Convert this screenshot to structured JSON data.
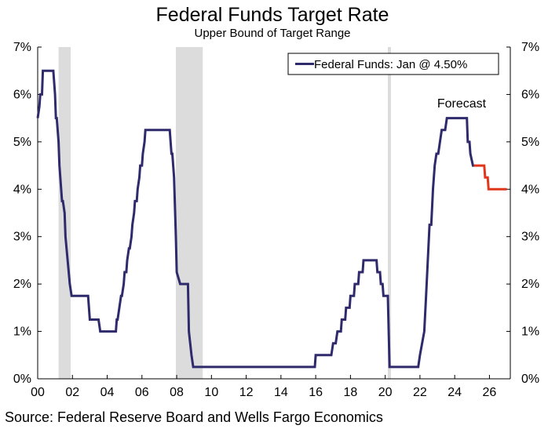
{
  "chart_data": {
    "type": "line",
    "title": "Federal Funds Target Rate",
    "subtitle": "Upper Bound of Target Range",
    "source": "Source: Federal Reserve Board and Wells Fargo Economics",
    "annotation": "Forecast",
    "legend": {
      "label": "Federal Funds: Jan @ 4.50%",
      "placement": "top-right"
    },
    "xlim": [
      0,
      27.2
    ],
    "ylim": [
      0,
      7
    ],
    "x_ticks": [
      0,
      2,
      4,
      6,
      8,
      10,
      12,
      14,
      16,
      18,
      20,
      22,
      24,
      26
    ],
    "x_tick_labels": [
      "00",
      "02",
      "04",
      "06",
      "08",
      "10",
      "12",
      "14",
      "16",
      "18",
      "20",
      "22",
      "24",
      "26"
    ],
    "y_ticks": [
      0,
      1,
      2,
      3,
      4,
      5,
      6,
      7
    ],
    "y_tick_labels": [
      "0%",
      "1%",
      "2%",
      "3%",
      "4%",
      "5%",
      "6%",
      "7%"
    ],
    "y_tick_labels_right": [
      "0%",
      "1%",
      "2%",
      "3%",
      "4%",
      "5%",
      "6%",
      "7%"
    ],
    "grid": false,
    "recessions": [
      [
        1.2,
        1.9
      ],
      [
        7.95,
        9.5
      ],
      [
        20.15,
        20.33
      ]
    ],
    "colors": {
      "actual": "#2e2a6b",
      "forecast": "#e0361c",
      "recession": "#dcdcdc"
    },
    "series": [
      {
        "name": "Federal Funds: Jan @ 4.50%",
        "role": "actual",
        "x": [
          0.0,
          0.1,
          0.15,
          0.25,
          0.3,
          0.4,
          0.45,
          0.55,
          0.6,
          0.9,
          1.0,
          1.05,
          1.1,
          1.2,
          1.25,
          1.35,
          1.4,
          1.45,
          1.55,
          1.6,
          1.85,
          1.95,
          2.9,
          3.0,
          3.5,
          3.6,
          4.5,
          4.55,
          4.6,
          4.7,
          4.8,
          4.85,
          4.95,
          5.0,
          5.1,
          5.15,
          5.25,
          5.3,
          5.4,
          5.45,
          5.55,
          5.6,
          5.7,
          5.75,
          5.85,
          5.9,
          6.0,
          6.05,
          6.15,
          6.2,
          6.3,
          6.35,
          6.45,
          6.5,
          7.6,
          7.65,
          7.7,
          7.75,
          7.8,
          7.85,
          7.95,
          8.0,
          8.2,
          8.3,
          8.65,
          8.7,
          8.85,
          8.95,
          15.95,
          16.0,
          16.9,
          17.0,
          17.15,
          17.25,
          17.45,
          17.5,
          17.7,
          17.75,
          17.95,
          18.0,
          18.2,
          18.25,
          18.45,
          18.5,
          18.7,
          18.75,
          18.95,
          19.0,
          19.5,
          19.55,
          19.7,
          19.75,
          19.85,
          19.9,
          20.15,
          20.2,
          20.25,
          21.9,
          22.0,
          22.25,
          22.35,
          22.45,
          22.55,
          22.65,
          22.75,
          22.85,
          22.95,
          23.05,
          23.15,
          23.25,
          23.35,
          23.45,
          23.55,
          23.6,
          23.75,
          24.7,
          24.75,
          24.85,
          24.9,
          25.05,
          25.1
        ],
        "values": [
          5.5,
          5.75,
          6.0,
          6.0,
          6.5,
          6.5,
          6.5,
          6.5,
          6.5,
          6.5,
          6.0,
          5.5,
          5.5,
          5.0,
          4.5,
          4.0,
          3.75,
          3.75,
          3.5,
          3.0,
          2.0,
          1.75,
          1.75,
          1.25,
          1.25,
          1.0,
          1.0,
          1.25,
          1.25,
          1.5,
          1.75,
          1.75,
          2.0,
          2.25,
          2.25,
          2.5,
          2.75,
          2.75,
          3.0,
          3.25,
          3.5,
          3.75,
          3.75,
          4.0,
          4.25,
          4.5,
          4.5,
          4.75,
          5.0,
          5.25,
          5.25,
          5.25,
          5.25,
          5.25,
          5.25,
          5.0,
          4.75,
          4.75,
          4.5,
          4.25,
          3.0,
          2.25,
          2.0,
          2.0,
          2.0,
          1.0,
          0.5,
          0.25,
          0.25,
          0.5,
          0.5,
          0.75,
          0.75,
          1.0,
          1.0,
          1.25,
          1.25,
          1.5,
          1.5,
          1.75,
          1.75,
          2.0,
          2.0,
          2.25,
          2.25,
          2.5,
          2.5,
          2.5,
          2.5,
          2.25,
          2.25,
          2.0,
          2.0,
          1.75,
          1.75,
          1.0,
          0.25,
          0.25,
          0.5,
          1.0,
          1.75,
          2.5,
          3.25,
          3.25,
          4.0,
          4.5,
          4.75,
          4.75,
          5.0,
          5.25,
          5.25,
          5.25,
          5.5,
          5.5,
          5.5,
          5.5,
          5.0,
          5.0,
          4.75,
          4.5,
          4.5
        ]
      },
      {
        "name": "",
        "role": "forecast",
        "x": [
          25.1,
          25.7,
          25.75,
          25.9,
          25.95,
          27.0
        ],
        "values": [
          4.5,
          4.5,
          4.25,
          4.25,
          4.0,
          4.0
        ]
      }
    ]
  }
}
